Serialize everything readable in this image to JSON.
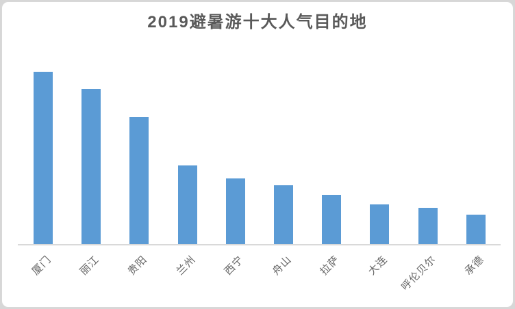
{
  "chart_data": {
    "type": "bar",
    "title": "2019避暑游十大人气目的地",
    "categories": [
      "厦门",
      "丽江",
      "贵阳",
      "兰州",
      "西宁",
      "舟山",
      "拉萨",
      "大连",
      "呼伦贝尔",
      "承德"
    ],
    "values": [
      100,
      90,
      73.5,
      45.5,
      38,
      34,
      28.5,
      23,
      21,
      17
    ],
    "xlabel": "",
    "ylabel": "",
    "ylim": [
      0,
      105
    ],
    "grid": false,
    "legend": false,
    "value_axis_visible": false,
    "category_label_rotation_deg": -45,
    "colors": {
      "bar": "#5b9bd5",
      "axis_line": "#d9d9d9",
      "title_text": "#595959",
      "category_text": "#666666",
      "frame_border": "#d9d9d9",
      "plot_background": "#ffffff",
      "page_background": "#d7d7d7"
    }
  }
}
